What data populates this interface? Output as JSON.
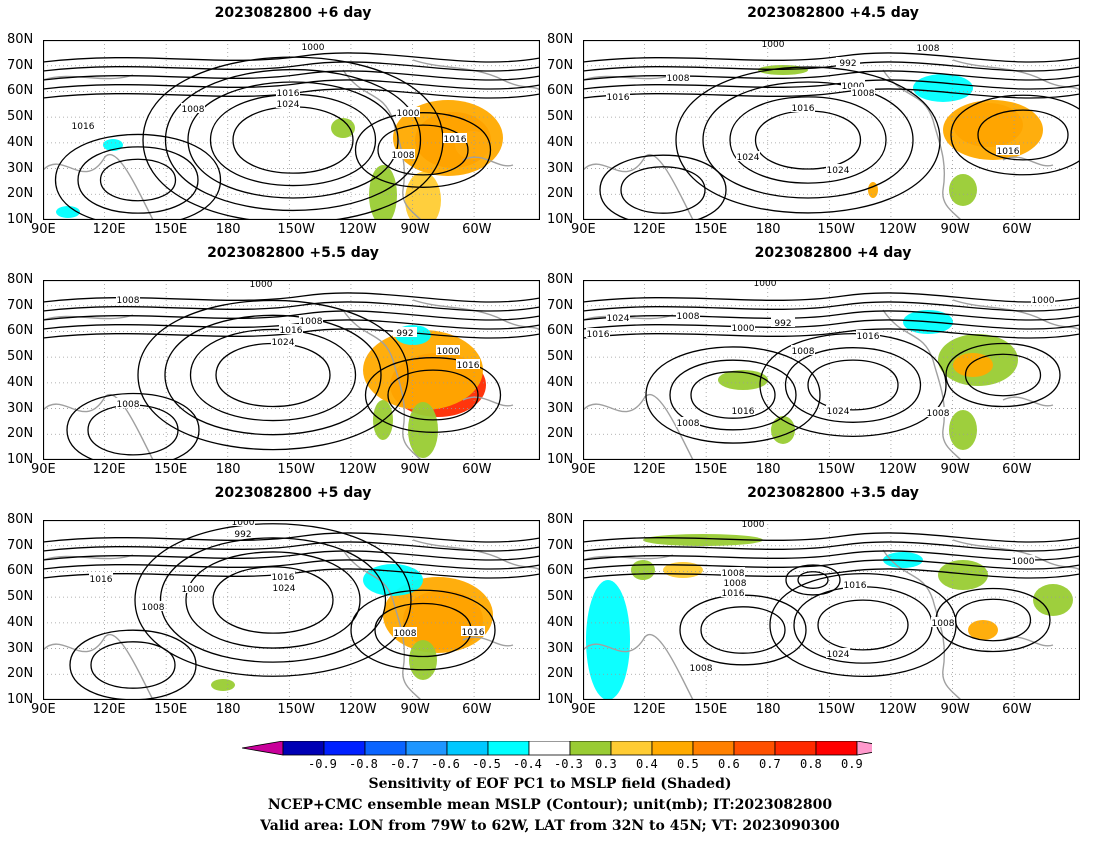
{
  "panels": [
    {
      "title": "2023082800  +6  day",
      "key": "d6"
    },
    {
      "title": "2023082800  +4.5  day",
      "key": "d45"
    },
    {
      "title": "2023082800  +5.5  day",
      "key": "d55"
    },
    {
      "title": "2023082800  +4  day",
      "key": "d4"
    },
    {
      "title": "2023082800  +5  day",
      "key": "d5"
    },
    {
      "title": "2023082800  +3.5  day",
      "key": "d35"
    }
  ],
  "lat_labels": [
    "80N",
    "70N",
    "60N",
    "50N",
    "40N",
    "30N",
    "20N",
    "10N"
  ],
  "lon_labels": [
    "90E",
    "120E",
    "150E",
    "180",
    "150W",
    "120W",
    "90W",
    "60W"
  ],
  "colorbar": {
    "colors": [
      "#c8009a",
      "#0000b4",
      "#0020ff",
      "#0a64ff",
      "#1e96ff",
      "#00c8ff",
      "#00ffff",
      "#ffffff",
      "#99cc33",
      "#ffcc33",
      "#ffaa00",
      "#ff8000",
      "#ff5000",
      "#ff2a00",
      "#ff0000",
      "#ff99cc"
    ],
    "labels": [
      "-0.9",
      "-0.8",
      "-0.7",
      "-0.6",
      "-0.5",
      "-0.4",
      "-0.3",
      "0.3",
      "0.4",
      "0.5",
      "0.6",
      "0.7",
      "0.8",
      "0.9"
    ]
  },
  "contour_labels": {
    "d6": [
      "1000",
      "1016",
      "1024",
      "1008",
      "1016",
      "1000",
      "1016",
      "1008"
    ],
    "d45": [
      "1000",
      "1008",
      "992",
      "1008",
      "1016",
      "1000",
      "1008",
      "1016",
      "1024",
      "1024",
      "1016"
    ],
    "d55": [
      "1000",
      "1008",
      "1008",
      "1016",
      "1024",
      "992",
      "1000",
      "1016",
      "1008"
    ],
    "d4": [
      "1000",
      "1024",
      "1008",
      "1016",
      "1000",
      "992",
      "1016",
      "1008",
      "1000",
      "1016",
      "1024",
      "1008",
      "1008"
    ],
    "d5": [
      "1000",
      "992",
      "1016",
      "1016",
      "1024",
      "1000",
      "1008",
      "1008",
      "1016"
    ],
    "d35": [
      "1000",
      "1008",
      "1008",
      "1016",
      "1016",
      "1000",
      "1008",
      "1024",
      "1008"
    ]
  },
  "captions": {
    "line1": "Sensitivity of EOF PC1 to MSLP field (Shaded)",
    "line2": "NCEP+CMC ensemble mean MSLP (Contour); unit(mb); IT:2023082800",
    "line3": "Valid area: LON from 79W to 62W, LAT from 32N to 45N; VT: 2023090300"
  },
  "colors": {
    "contour": "#000000",
    "coast": "#a0a0a0",
    "grid": "#9a9a9a"
  }
}
